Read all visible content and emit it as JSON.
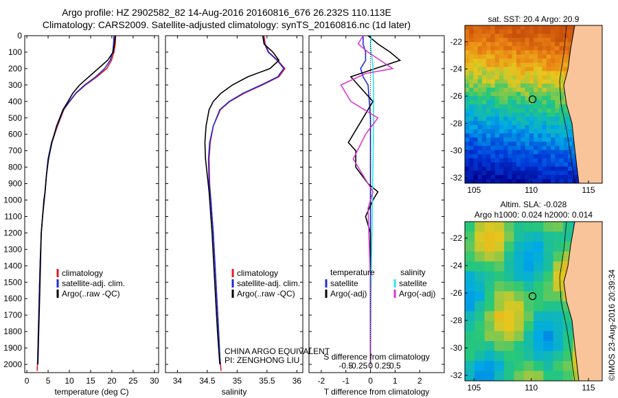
{
  "header": {
    "line1": "Argo profile: HZ 2902582_82 14-Aug-2016 20160816_676 26.232S 110.113E",
    "line2": "Climatology: CARS2009. Satellite-adjusted climatology: synTS_20160816.nc (1d later)"
  },
  "stamp": "©IMOS 23-Aug-2016 20:39:34",
  "colors": {
    "climatology": "#e41a1c",
    "satellite": "#1c2bd8",
    "argo": "#000000",
    "sat_sal": "#27e6ee",
    "argo_sal": "#d936d0",
    "land": "#f9c49a"
  },
  "chart_data": [
    {
      "type": "line",
      "id": "temperature",
      "xlabel": "temperature (deg C)",
      "ylabel": "",
      "xlim": [
        -0.5,
        31
      ],
      "ylim": [
        2050,
        0
      ],
      "y_inverted": true,
      "x_ticks": [
        "0",
        "5",
        "10",
        "15",
        "20",
        "25",
        "30"
      ],
      "y_ticks": [
        "0",
        "100",
        "200",
        "300",
        "400",
        "500",
        "600",
        "700",
        "800",
        "900",
        "1000",
        "1100",
        "1200",
        "1300",
        "1400",
        "1500",
        "1600",
        "1700",
        "1800",
        "1900",
        "2000"
      ],
      "legend": [
        "climatology",
        "satellite-adj. clim.",
        "Argo(..raw -QC)"
      ],
      "legend_position": "lower-center",
      "series": [
        {
          "name": "climatology",
          "color": "red",
          "x": [
            20.9,
            20.8,
            20.5,
            19.9,
            18.8,
            16.5,
            13.8,
            11.6,
            10.1,
            8.7,
            7.2,
            5.9,
            5.0,
            4.6,
            4.1,
            3.7,
            3.4,
            3.1,
            2.9,
            2.7,
            2.6,
            2.5,
            2.4
          ],
          "y": [
            0,
            50,
            100,
            150,
            200,
            250,
            300,
            350,
            400,
            450,
            550,
            650,
            750,
            850,
            1000,
            1100,
            1200,
            1400,
            1600,
            1800,
            1900,
            2000,
            2040
          ]
        },
        {
          "name": "satellite-adj. clim.",
          "color": "blue",
          "x": [
            20.5,
            20.4,
            20.2,
            19.6,
            18.3,
            16.2,
            13.6,
            11.5,
            10.0,
            8.6,
            7.1,
            5.8,
            5.0,
            4.6,
            4.1,
            3.7,
            3.4,
            3.1,
            2.9,
            2.7,
            2.6,
            2.5
          ],
          "y": [
            0,
            50,
            100,
            150,
            200,
            250,
            300,
            350,
            400,
            450,
            550,
            650,
            750,
            850,
            1000,
            1100,
            1200,
            1400,
            1600,
            1800,
            1900,
            2000
          ]
        },
        {
          "name": "Argo(..raw -QC)",
          "color": "black",
          "x": [
            20.8,
            20.6,
            20.3,
            19.0,
            16.8,
            14.6,
            12.4,
            10.8,
            9.7,
            8.5,
            7.0,
            5.9,
            5.1,
            4.6,
            4.3,
            4.0,
            3.7,
            3.4,
            3.2,
            3.0,
            2.8,
            2.7,
            2.6
          ],
          "y": [
            0,
            50,
            100,
            150,
            200,
            250,
            300,
            350,
            400,
            450,
            550,
            650,
            750,
            850,
            950,
            1000,
            1100,
            1200,
            1400,
            1600,
            1800,
            1900,
            2000
          ]
        }
      ]
    },
    {
      "type": "line",
      "id": "salinity",
      "xlabel": "salinity",
      "ylabel": "",
      "xlim": [
        33.8,
        36.1
      ],
      "ylim": [
        2050,
        0
      ],
      "y_inverted": true,
      "x_ticks": [
        "34",
        "34.5",
        "35",
        "35.5",
        "36"
      ],
      "legend": [
        "climatology",
        "satellite-adj. clim.",
        "Argo(..raw -QC)"
      ],
      "legend_position": "lower-center",
      "annotation": [
        "CHINA ARGO EQUIVALENT",
        "PI: ZENGHONG LIU"
      ],
      "series": [
        {
          "name": "climatology",
          "color": "red",
          "x": [
            35.45,
            35.47,
            35.53,
            35.68,
            35.8,
            35.7,
            35.42,
            35.12,
            34.88,
            34.72,
            34.6,
            34.55,
            34.53,
            34.54,
            34.56,
            34.58,
            34.6,
            34.63,
            34.66,
            34.69,
            34.71,
            34.73
          ],
          "y": [
            0,
            50,
            100,
            150,
            200,
            250,
            300,
            350,
            400,
            450,
            550,
            650,
            750,
            900,
            1000,
            1100,
            1200,
            1400,
            1600,
            1800,
            1950,
            2040
          ]
        },
        {
          "name": "satellite-adj. clim.",
          "color": "blue",
          "x": [
            35.43,
            35.46,
            35.52,
            35.67,
            35.78,
            35.68,
            35.4,
            35.1,
            34.87,
            34.71,
            34.6,
            34.54,
            34.52,
            34.53,
            34.56,
            34.58,
            34.6,
            34.63,
            34.66,
            34.69,
            34.71,
            34.72
          ],
          "y": [
            0,
            50,
            100,
            150,
            200,
            250,
            300,
            350,
            400,
            450,
            550,
            650,
            750,
            900,
            1000,
            1100,
            1200,
            1400,
            1600,
            1800,
            1950,
            2000
          ]
        },
        {
          "name": "Argo(..raw -QC)",
          "color": "black",
          "x": [
            35.43,
            35.45,
            35.6,
            35.7,
            35.55,
            35.18,
            34.92,
            34.73,
            34.6,
            34.53,
            34.48,
            34.46,
            34.47,
            34.5,
            34.53,
            34.55,
            34.58,
            34.61,
            34.64,
            34.67,
            34.69,
            34.71
          ],
          "y": [
            0,
            50,
            100,
            150,
            200,
            250,
            300,
            350,
            400,
            450,
            550,
            650,
            750,
            850,
            950,
            1050,
            1200,
            1400,
            1600,
            1800,
            1900,
            2000
          ]
        }
      ]
    },
    {
      "type": "line",
      "id": "differences",
      "xlabel": "T difference from climatology",
      "xlabel_top": "S difference from climatology",
      "xlim": [
        -2.5,
        3.0
      ],
      "ylim": [
        2050,
        0
      ],
      "y_inverted": true,
      "x_ticks": [
        "-2",
        "-1",
        "0",
        "1",
        "2"
      ],
      "x_ticks_top": [
        "-0.5",
        "-0.25",
        "0",
        "0.25",
        "0.5"
      ],
      "legend_left": {
        "heading": "temperature",
        "items": [
          "satellite",
          "Argo(-adj)"
        ]
      },
      "legend_right": {
        "heading": "salinity",
        "items": [
          "satellite",
          "Argo(-adj)"
        ]
      },
      "series": [
        {
          "name": "temperature satellite",
          "color": "blue",
          "x": [
            -0.3,
            -0.3,
            -0.2,
            -0.2,
            -0.4,
            -0.3,
            -0.1,
            -0.05,
            0.0,
            0.0,
            0.0,
            0.0,
            0.0
          ],
          "y": [
            0,
            50,
            100,
            150,
            200,
            250,
            300,
            400,
            500,
            700,
            1000,
            1500,
            2000
          ]
        },
        {
          "name": "temperature Argo(-adj)",
          "color": "black",
          "x": [
            -0.1,
            0.3,
            0.8,
            1.2,
            0.2,
            -0.8,
            -0.5,
            0.1,
            -0.3,
            -0.9,
            -0.6,
            -0.6,
            -0.1,
            0.3,
            0.1,
            -0.2,
            0.0,
            0.0,
            0.0
          ],
          "y": [
            0,
            50,
            100,
            150,
            200,
            250,
            300,
            400,
            500,
            650,
            700,
            800,
            900,
            950,
            1000,
            1100,
            1200,
            1500,
            2000
          ]
        },
        {
          "name": "salinity satellite",
          "color": "cyan",
          "x": [
            0.05,
            0.0,
            0.03,
            0.07,
            0.1,
            0.12,
            0.13,
            0.12,
            0.1,
            0.08,
            0.05,
            0.02,
            0.0
          ],
          "y": [
            0,
            50,
            100,
            150,
            200,
            300,
            400,
            600,
            800,
            1000,
            1300,
            1600,
            2000
          ]
        },
        {
          "name": "salinity Argo(-adj)",
          "color": "magenta",
          "x": [
            -0.3,
            -0.5,
            -0.1,
            0.9,
            -0.2,
            -1.2,
            -0.8,
            0.3,
            -0.2,
            -0.7,
            -0.3,
            0.1,
            -0.1,
            0.0,
            0.0
          ],
          "y": [
            0,
            50,
            100,
            200,
            230,
            300,
            400,
            500,
            600,
            750,
            850,
            950,
            1050,
            1500,
            2000
          ]
        }
      ]
    },
    {
      "type": "heatmap",
      "id": "sst_map",
      "title": "sat. SST: 20.4  Argo: 20.9",
      "x_ticks": [
        "105",
        "110",
        "115"
      ],
      "y_ticks": [
        "-22",
        "-24",
        "-26",
        "-28",
        "-30",
        "-32"
      ],
      "marker": {
        "lon": 110.113,
        "lat": -26.232
      }
    },
    {
      "type": "heatmap",
      "id": "sla_map",
      "title_line1": "Altim. SLA: -0.028",
      "title_line2": "Argo h1000: 0.024 h2000: 0.014",
      "x_ticks": [
        "105",
        "110",
        "115"
      ],
      "y_ticks": [
        "-22",
        "-24",
        "-26",
        "-28",
        "-30",
        "-32"
      ],
      "marker": {
        "lon": 110.113,
        "lat": -26.232
      }
    }
  ]
}
